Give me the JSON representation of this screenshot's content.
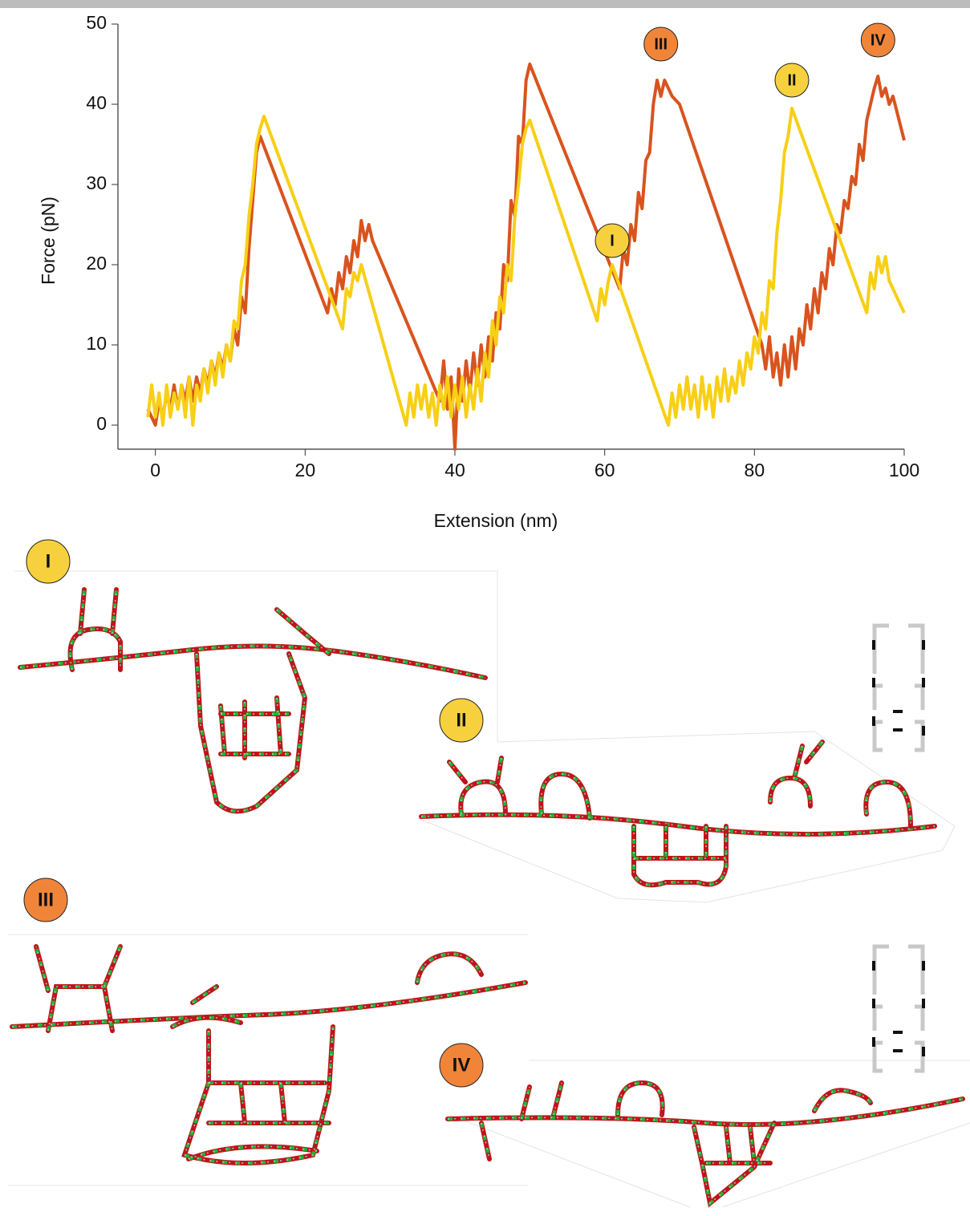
{
  "chart_data": {
    "type": "line",
    "xlabel": "Extension (nm)",
    "ylabel": "Force (pN)",
    "xlim": [
      -5,
      100
    ],
    "ylim": [
      -3,
      50
    ],
    "xticks": [
      0,
      20,
      40,
      60,
      80,
      100
    ],
    "yticks": [
      0,
      10,
      20,
      30,
      40,
      50
    ],
    "series": [
      {
        "color": "#d9531e",
        "x": [
          -1,
          0,
          0.5,
          1,
          1.5,
          2,
          2.5,
          3,
          3.5,
          4,
          4.5,
          5,
          5.5,
          6,
          6.5,
          7,
          7.5,
          8,
          8.5,
          9,
          9.5,
          10,
          10.5,
          11,
          11.5,
          12,
          12.5,
          13,
          13.5,
          14,
          23,
          23.5,
          24,
          24.5,
          25,
          25.5,
          26,
          26.5,
          27,
          27.5,
          28,
          28.5,
          29,
          38,
          38.5,
          39,
          39.5,
          40,
          40.5,
          41,
          41.5,
          42,
          42.5,
          43,
          43.5,
          44,
          44.5,
          45,
          45.5,
          46,
          46.5,
          47,
          47.5,
          48,
          48.5,
          49,
          49.5,
          50,
          62,
          62.5,
          63,
          63.5,
          64,
          64.5,
          65,
          65.5,
          66,
          66.5,
          67,
          67.5,
          68,
          69,
          70,
          81,
          81.5,
          82,
          82.5,
          83,
          83.5,
          84,
          84.5,
          85,
          85.5,
          86,
          86.5,
          87,
          87.5,
          88,
          88.5,
          89,
          89.5,
          90,
          90.5,
          91,
          91.5,
          92,
          92.5,
          93,
          93.5,
          94,
          94.5,
          95,
          95.5,
          96,
          96.5,
          97,
          97.5,
          98,
          98.5,
          100
        ],
        "values": [
          2,
          0,
          3,
          1,
          4,
          2,
          5,
          2,
          5,
          3,
          6,
          3,
          6,
          4,
          7,
          5,
          8,
          6,
          9,
          7,
          10,
          8,
          12,
          10,
          16,
          14,
          22,
          28,
          34,
          36,
          14,
          17,
          15,
          19,
          17,
          21,
          19,
          23,
          21,
          25.5,
          23,
          25,
          23,
          3,
          8,
          2,
          6,
          -3,
          7,
          3,
          8,
          4,
          9,
          5,
          10,
          6,
          11,
          8,
          14,
          12,
          20,
          18,
          28,
          26,
          36,
          35,
          43,
          45,
          17,
          22,
          20,
          25,
          23,
          29,
          27,
          33,
          34,
          40,
          43,
          41,
          43,
          41,
          40,
          10,
          7,
          11,
          6,
          9,
          5,
          10,
          6,
          11,
          7,
          12,
          10,
          15,
          12,
          17,
          14,
          19,
          17,
          22,
          20,
          25,
          24,
          28,
          27,
          31,
          30,
          35,
          33,
          38,
          40,
          42,
          43.5,
          41,
          42,
          40,
          41,
          35.5
        ]
      },
      {
        "color": "#f7cf16",
        "x": [
          -1,
          -0.5,
          0,
          0.5,
          1,
          1.5,
          2,
          2.5,
          3,
          3.5,
          4,
          4.5,
          5,
          5.5,
          6,
          6.5,
          7,
          7.5,
          8,
          8.5,
          9,
          9.5,
          10,
          10.5,
          11,
          11.5,
          12,
          12.5,
          13,
          13.5,
          14,
          14.5,
          25,
          25.5,
          26,
          26.5,
          27,
          27.5,
          33.5,
          34,
          34.5,
          35,
          35.5,
          36,
          36.5,
          37,
          37.5,
          38,
          38.5,
          39,
          39.5,
          40,
          40.5,
          41,
          41.5,
          42,
          42.5,
          43,
          43.5,
          44,
          44.5,
          45,
          45.5,
          46,
          46.5,
          47,
          47.5,
          48,
          48.5,
          49,
          49.5,
          50,
          59,
          59.5,
          60,
          60.5,
          61,
          68.5,
          69,
          69.5,
          70,
          70.5,
          71,
          71.5,
          72,
          72.5,
          73,
          73.5,
          74,
          74.5,
          75,
          75.5,
          76,
          76.5,
          77,
          77.5,
          78,
          78.5,
          79,
          79.5,
          80,
          80.5,
          81,
          81.5,
          82,
          82.5,
          83,
          83.5,
          84,
          84.5,
          85,
          95,
          95.5,
          96,
          96.5,
          97,
          97.5,
          98,
          100
        ],
        "values": [
          1,
          5,
          1,
          4,
          0,
          5,
          1,
          4,
          2,
          5,
          1,
          6,
          0,
          5,
          3,
          7,
          4,
          8,
          5,
          9,
          6,
          10,
          8,
          13,
          12,
          18,
          20,
          26,
          30,
          35,
          37,
          38.5,
          12,
          17,
          16,
          19,
          18,
          20,
          0,
          4,
          1,
          5,
          2,
          5,
          1,
          4,
          0,
          5,
          2,
          6,
          1,
          5,
          2,
          6,
          1,
          5,
          2,
          7,
          3,
          9,
          6,
          13,
          10,
          16,
          14,
          20,
          18,
          26,
          30,
          35,
          37,
          38,
          13,
          17,
          15,
          18,
          20,
          0,
          4,
          1,
          5,
          2,
          6,
          2,
          5,
          1,
          6,
          2,
          5,
          1,
          6,
          3,
          7,
          3,
          6,
          4,
          8,
          5,
          9,
          7,
          11,
          9,
          14,
          12,
          18,
          17,
          24,
          28,
          34,
          36,
          39.5,
          14,
          19,
          17,
          21,
          19,
          21,
          18,
          14
        ]
      }
    ],
    "annotations": [
      {
        "text": "I",
        "x": 61,
        "y": 23,
        "color": "#f7d13d"
      },
      {
        "text": "II",
        "x": 85,
        "y": 43,
        "color": "#f7d13d"
      },
      {
        "text": "III",
        "x": 67.5,
        "y": 47.5,
        "color": "#f0853a"
      },
      {
        "text": "IV",
        "x": 96.5,
        "y": 48,
        "color": "#f0853a"
      }
    ]
  },
  "panels": [
    {
      "label": "I"
    },
    {
      "label": "II"
    },
    {
      "label": "III"
    },
    {
      "label": "IV"
    }
  ]
}
